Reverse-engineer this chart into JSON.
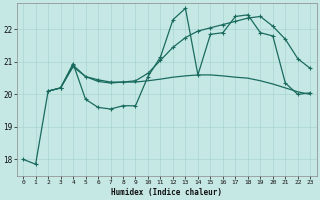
{
  "xlabel": "Humidex (Indice chaleur)",
  "background_color": "#c5e8e5",
  "grid_color": "#aad4d0",
  "line_color": "#1a6b5e",
  "xlim": [
    -0.5,
    23.5
  ],
  "ylim": [
    17.5,
    22.8
  ],
  "yticks": [
    18,
    19,
    20,
    21,
    22
  ],
  "xticks": [
    0,
    1,
    2,
    3,
    4,
    5,
    6,
    7,
    8,
    9,
    10,
    11,
    12,
    13,
    14,
    15,
    16,
    17,
    18,
    19,
    20,
    21,
    22,
    23
  ],
  "line1_x": [
    0,
    1,
    2,
    3,
    4,
    5,
    6,
    7,
    8,
    9,
    10,
    11,
    12,
    13,
    14,
    15,
    16,
    17,
    18,
    19,
    20,
    21,
    22,
    23
  ],
  "line1_y": [
    18.0,
    17.85,
    20.1,
    20.2,
    20.95,
    19.85,
    19.6,
    19.55,
    19.65,
    19.65,
    20.55,
    21.15,
    22.3,
    22.65,
    20.6,
    21.85,
    21.9,
    22.4,
    22.45,
    21.9,
    21.8,
    20.35,
    20.0,
    20.05
  ],
  "line2_x": [
    2,
    3,
    4,
    5,
    6,
    7,
    8,
    9,
    10,
    11,
    12,
    13,
    14,
    15,
    16,
    17,
    18,
    19,
    20,
    21,
    22,
    23
  ],
  "line2_y": [
    20.1,
    20.2,
    20.85,
    20.55,
    20.4,
    20.35,
    20.38,
    20.38,
    20.42,
    20.47,
    20.53,
    20.57,
    20.6,
    20.6,
    20.57,
    20.53,
    20.5,
    20.42,
    20.32,
    20.2,
    20.08,
    20.0
  ],
  "line3_x": [
    2,
    3,
    4,
    5,
    6,
    7,
    8,
    9,
    10,
    11,
    12,
    13,
    14,
    15,
    16,
    17,
    18,
    19,
    20,
    21,
    22,
    23
  ],
  "line3_y": [
    20.1,
    20.2,
    20.9,
    20.55,
    20.45,
    20.38,
    20.38,
    20.42,
    20.65,
    21.05,
    21.45,
    21.75,
    21.95,
    22.05,
    22.15,
    22.25,
    22.35,
    22.4,
    22.1,
    21.7,
    21.1,
    20.8
  ]
}
